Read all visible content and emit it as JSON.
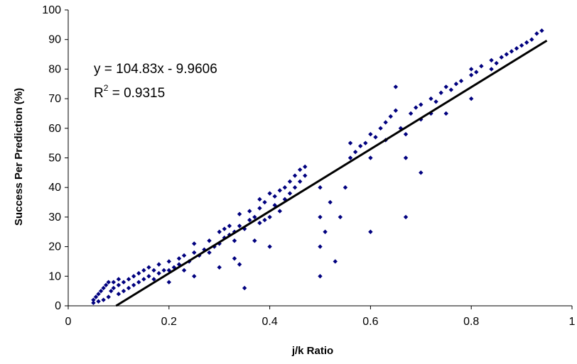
{
  "chart_data": {
    "type": "scatter",
    "title": "",
    "xlabel": "j/k Ratio",
    "ylabel": "Success Per Prediction (%)",
    "xlim": [
      0,
      1
    ],
    "ylim": [
      0,
      100
    ],
    "x_ticks": [
      "0",
      "0.2",
      "0.4",
      "0.6",
      "0.8",
      "1"
    ],
    "y_ticks": [
      "0",
      "10",
      "20",
      "30",
      "40",
      "50",
      "60",
      "70",
      "80",
      "90",
      "100"
    ],
    "grid": false,
    "legend": "none",
    "marker_color": "#00007F",
    "trendline": {
      "slope": 104.83,
      "intercept": -9.9606,
      "x_range": [
        0.095,
        0.95
      ],
      "color": "#000000",
      "equation_text": "y = 104.83x - 9.9606",
      "r2_prefix": "R",
      "r2_sup": "2",
      "r2_suffix": " = 0.9315"
    },
    "series": [
      {
        "points": [
          [
            0.05,
            1
          ],
          [
            0.05,
            2
          ],
          [
            0.055,
            3
          ],
          [
            0.06,
            1.5
          ],
          [
            0.06,
            4
          ],
          [
            0.065,
            5
          ],
          [
            0.07,
            2
          ],
          [
            0.07,
            6
          ],
          [
            0.075,
            7
          ],
          [
            0.08,
            3
          ],
          [
            0.08,
            8
          ],
          [
            0.085,
            5
          ],
          [
            0.09,
            6
          ],
          [
            0.09,
            8
          ],
          [
            0.1,
            4
          ],
          [
            0.1,
            7
          ],
          [
            0.1,
            9
          ],
          [
            0.11,
            5
          ],
          [
            0.11,
            8
          ],
          [
            0.12,
            6
          ],
          [
            0.12,
            9
          ],
          [
            0.13,
            7
          ],
          [
            0.13,
            10
          ],
          [
            0.14,
            8
          ],
          [
            0.14,
            11
          ],
          [
            0.15,
            9
          ],
          [
            0.15,
            12
          ],
          [
            0.16,
            10
          ],
          [
            0.16,
            13
          ],
          [
            0.17,
            9
          ],
          [
            0.17,
            12
          ],
          [
            0.18,
            11
          ],
          [
            0.18,
            14
          ],
          [
            0.19,
            12
          ],
          [
            0.2,
            8
          ],
          [
            0.2,
            12
          ],
          [
            0.2,
            15
          ],
          [
            0.21,
            13
          ],
          [
            0.22,
            14
          ],
          [
            0.22,
            16
          ],
          [
            0.23,
            12
          ],
          [
            0.23,
            17
          ],
          [
            0.24,
            15
          ],
          [
            0.25,
            10
          ],
          [
            0.25,
            18
          ],
          [
            0.25,
            21
          ],
          [
            0.26,
            17
          ],
          [
            0.27,
            19
          ],
          [
            0.28,
            18
          ],
          [
            0.28,
            22
          ],
          [
            0.29,
            20
          ],
          [
            0.3,
            13
          ],
          [
            0.3,
            21
          ],
          [
            0.3,
            25
          ],
          [
            0.31,
            23
          ],
          [
            0.31,
            26
          ],
          [
            0.32,
            24
          ],
          [
            0.32,
            27
          ],
          [
            0.33,
            16
          ],
          [
            0.33,
            22
          ],
          [
            0.33,
            25
          ],
          [
            0.34,
            14
          ],
          [
            0.34,
            27
          ],
          [
            0.34,
            31
          ],
          [
            0.35,
            6
          ],
          [
            0.35,
            26
          ],
          [
            0.36,
            29
          ],
          [
            0.36,
            32
          ],
          [
            0.37,
            22
          ],
          [
            0.37,
            30
          ],
          [
            0.38,
            28
          ],
          [
            0.38,
            33
          ],
          [
            0.38,
            36
          ],
          [
            0.39,
            29
          ],
          [
            0.39,
            35
          ],
          [
            0.4,
            20
          ],
          [
            0.4,
            30
          ],
          [
            0.4,
            38
          ],
          [
            0.41,
            34
          ],
          [
            0.41,
            37
          ],
          [
            0.42,
            32
          ],
          [
            0.42,
            39
          ],
          [
            0.43,
            36
          ],
          [
            0.43,
            40
          ],
          [
            0.44,
            38
          ],
          [
            0.44,
            42
          ],
          [
            0.45,
            40
          ],
          [
            0.45,
            44
          ],
          [
            0.46,
            42
          ],
          [
            0.46,
            46
          ],
          [
            0.47,
            44
          ],
          [
            0.47,
            47
          ],
          [
            0.5,
            10
          ],
          [
            0.5,
            20
          ],
          [
            0.5,
            30
          ],
          [
            0.5,
            40
          ],
          [
            0.51,
            25
          ],
          [
            0.52,
            35
          ],
          [
            0.53,
            15
          ],
          [
            0.54,
            30
          ],
          [
            0.55,
            40
          ],
          [
            0.56,
            50
          ],
          [
            0.56,
            55
          ],
          [
            0.57,
            52
          ],
          [
            0.58,
            54
          ],
          [
            0.59,
            55
          ],
          [
            0.6,
            25
          ],
          [
            0.6,
            50
          ],
          [
            0.6,
            58
          ],
          [
            0.61,
            57
          ],
          [
            0.62,
            60
          ],
          [
            0.63,
            56
          ],
          [
            0.63,
            62
          ],
          [
            0.64,
            64
          ],
          [
            0.65,
            66
          ],
          [
            0.65,
            74
          ],
          [
            0.66,
            60
          ],
          [
            0.67,
            30
          ],
          [
            0.67,
            50
          ],
          [
            0.67,
            58
          ],
          [
            0.68,
            65
          ],
          [
            0.69,
            67
          ],
          [
            0.7,
            45
          ],
          [
            0.7,
            63
          ],
          [
            0.7,
            68
          ],
          [
            0.72,
            65
          ],
          [
            0.72,
            70
          ],
          [
            0.73,
            69
          ],
          [
            0.74,
            72
          ],
          [
            0.75,
            65
          ],
          [
            0.75,
            74
          ],
          [
            0.76,
            73
          ],
          [
            0.77,
            75
          ],
          [
            0.78,
            76
          ],
          [
            0.8,
            70
          ],
          [
            0.8,
            78
          ],
          [
            0.8,
            80
          ],
          [
            0.81,
            79
          ],
          [
            0.82,
            81
          ],
          [
            0.84,
            80
          ],
          [
            0.84,
            83
          ],
          [
            0.85,
            82
          ],
          [
            0.86,
            84
          ],
          [
            0.87,
            85
          ],
          [
            0.88,
            86
          ],
          [
            0.89,
            87
          ],
          [
            0.9,
            88
          ],
          [
            0.91,
            89
          ],
          [
            0.92,
            90
          ],
          [
            0.93,
            92
          ],
          [
            0.94,
            93
          ]
        ]
      }
    ]
  }
}
